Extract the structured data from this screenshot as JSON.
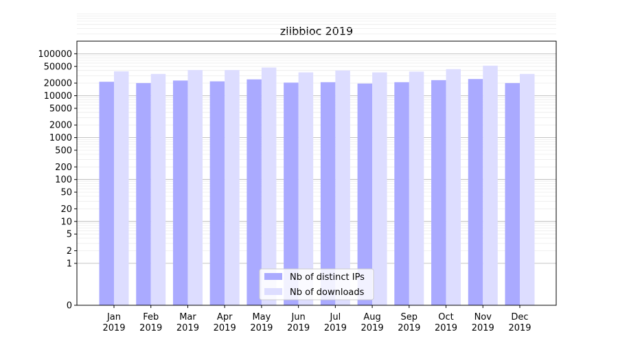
{
  "chart_data": {
    "type": "bar",
    "title": "zlibbioc 2019",
    "xlabel": "",
    "ylabel": "",
    "yscale": "symlog",
    "ylim": [
      0,
      200000
    ],
    "yticks": [
      "0",
      "1",
      "2",
      "5",
      "10",
      "20",
      "50",
      "100",
      "200",
      "500",
      "1000",
      "2000",
      "5000",
      "10000",
      "20000",
      "50000",
      "100000"
    ],
    "categories": [
      "Jan\n2019",
      "Feb\n2019",
      "Mar\n2019",
      "Apr\n2019",
      "May\n2019",
      "Jun\n2019",
      "Jul\n2019",
      "Aug\n2019",
      "Sep\n2019",
      "Oct\n2019",
      "Nov\n2019",
      "Dec\n2019"
    ],
    "category_lines": [
      [
        "Jan",
        "2019"
      ],
      [
        "Feb",
        "2019"
      ],
      [
        "Mar",
        "2019"
      ],
      [
        "Apr",
        "2019"
      ],
      [
        "May",
        "2019"
      ],
      [
        "Jun",
        "2019"
      ],
      [
        "Jul",
        "2019"
      ],
      [
        "Aug",
        "2019"
      ],
      [
        "Sep",
        "2019"
      ],
      [
        "Oct",
        "2019"
      ],
      [
        "Nov",
        "2019"
      ],
      [
        "Dec",
        "2019"
      ]
    ],
    "series": [
      {
        "name": "Nb of distinct IPs",
        "color": "#aaaaff",
        "values": [
          21500,
          20000,
          23000,
          22000,
          24500,
          20500,
          21000,
          19500,
          21000,
          23500,
          25000,
          20000
        ]
      },
      {
        "name": "Nb of downloads",
        "color": "#ddddff",
        "values": [
          38000,
          33000,
          41000,
          41000,
          47000,
          36000,
          40000,
          36000,
          37500,
          43000,
          52000,
          33000
        ]
      }
    ],
    "grid": true,
    "legend_position": "bottom-center"
  }
}
